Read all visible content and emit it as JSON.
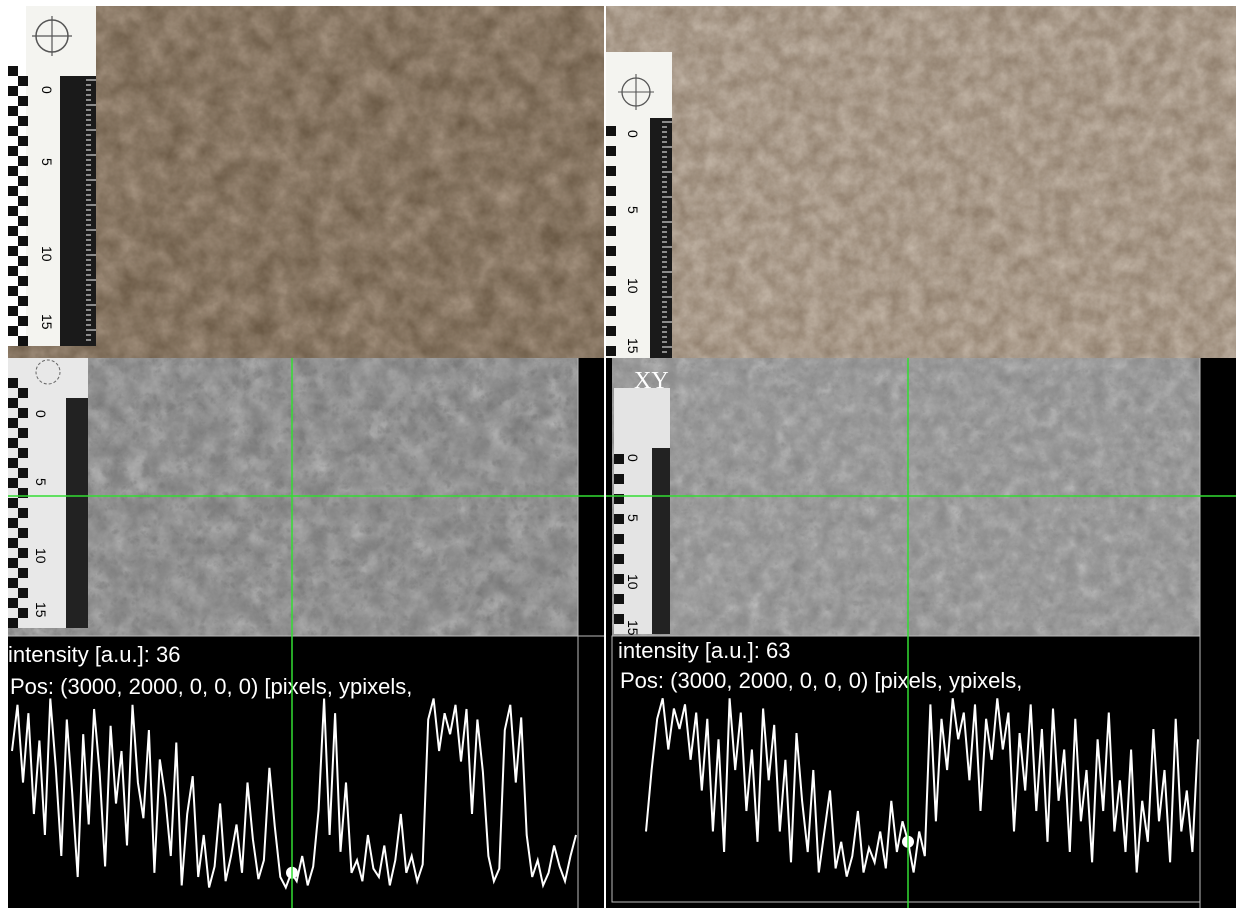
{
  "panels": {
    "top_left": {
      "kind": "color-photo",
      "ruler_numbers": [
        "0",
        "5",
        "10",
        "15"
      ]
    },
    "top_right": {
      "kind": "color-photo",
      "ruler_numbers": [
        "0",
        "5",
        "10",
        "15"
      ]
    },
    "bottom_left": {
      "kind": "grayscale-profile",
      "intensity_text": "intensity [a.u.]: 36",
      "pos_text": "Pos: (3000, 2000, 0, 0, 0) [pixels, ypixels,",
      "ruler_numbers": [
        "0",
        "5",
        "10",
        "15"
      ],
      "profile_values": [
        0.7,
        0.92,
        0.55,
        0.88,
        0.4,
        0.75,
        0.3,
        0.95,
        0.62,
        0.2,
        0.85,
        0.5,
        0.1,
        0.78,
        0.35,
        0.9,
        0.6,
        0.15,
        0.82,
        0.45,
        0.7,
        0.25,
        0.92,
        0.55,
        0.38,
        0.8,
        0.12,
        0.66,
        0.48,
        0.2,
        0.74,
        0.06,
        0.4,
        0.58,
        0.1,
        0.3,
        0.05,
        0.15,
        0.45,
        0.08,
        0.2,
        0.35,
        0.12,
        0.55,
        0.28,
        0.09,
        0.18,
        0.62,
        0.34,
        0.1,
        0.05,
        0.12,
        0.08,
        0.2,
        0.06,
        0.15,
        0.42,
        0.95,
        0.3,
        0.88,
        0.22,
        0.55,
        0.12,
        0.18,
        0.08,
        0.3,
        0.14,
        0.1,
        0.25,
        0.06,
        0.18,
        0.4,
        0.12,
        0.2,
        0.08,
        0.16,
        0.85,
        0.95,
        0.7,
        0.88,
        0.78,
        0.92,
        0.65,
        0.9,
        0.4,
        0.85,
        0.6,
        0.2,
        0.08,
        0.14,
        0.8,
        0.92,
        0.55,
        0.86,
        0.3,
        0.1,
        0.18,
        0.06,
        0.12,
        0.25,
        0.15,
        0.08,
        0.2,
        0.3
      ]
    },
    "bottom_right": {
      "kind": "grayscale-profile",
      "xy_label": "XY",
      "intensity_text": "intensity [a.u.]: 63",
      "pos_text": "Pos: (3000, 2000, 0, 0, 0) [pixels, ypixels,",
      "ruler_numbers": [
        "0",
        "5",
        "10",
        "15"
      ],
      "profile_values": [
        0.3,
        0.6,
        0.85,
        0.95,
        0.7,
        0.9,
        0.8,
        0.92,
        0.65,
        0.88,
        0.5,
        0.85,
        0.3,
        0.75,
        0.2,
        0.95,
        0.6,
        0.88,
        0.4,
        0.7,
        0.25,
        0.9,
        0.55,
        0.82,
        0.3,
        0.65,
        0.15,
        0.78,
        0.45,
        0.2,
        0.6,
        0.1,
        0.3,
        0.5,
        0.12,
        0.25,
        0.08,
        0.18,
        0.4,
        0.1,
        0.22,
        0.15,
        0.3,
        0.12,
        0.45,
        0.2,
        0.35,
        0.25,
        0.1,
        0.3,
        0.18,
        0.92,
        0.35,
        0.85,
        0.6,
        0.95,
        0.75,
        0.88,
        0.55,
        0.92,
        0.4,
        0.85,
        0.65,
        0.95,
        0.7,
        0.88,
        0.3,
        0.78,
        0.5,
        0.92,
        0.4,
        0.8,
        0.25,
        0.9,
        0.45,
        0.7,
        0.2,
        0.85,
        0.35,
        0.6,
        0.15,
        0.75,
        0.4,
        0.88,
        0.3,
        0.55,
        0.2,
        0.7,
        0.1,
        0.45,
        0.25,
        0.8,
        0.35,
        0.6,
        0.15,
        0.85,
        0.3,
        0.5,
        0.2,
        0.75
      ]
    }
  },
  "colors": {
    "crosshair": "#33dd33",
    "profile_line": "#ffffff",
    "profile_bg": "#000000",
    "soil_color_left": "#5e4a38",
    "soil_color_right": "#8a7866"
  }
}
